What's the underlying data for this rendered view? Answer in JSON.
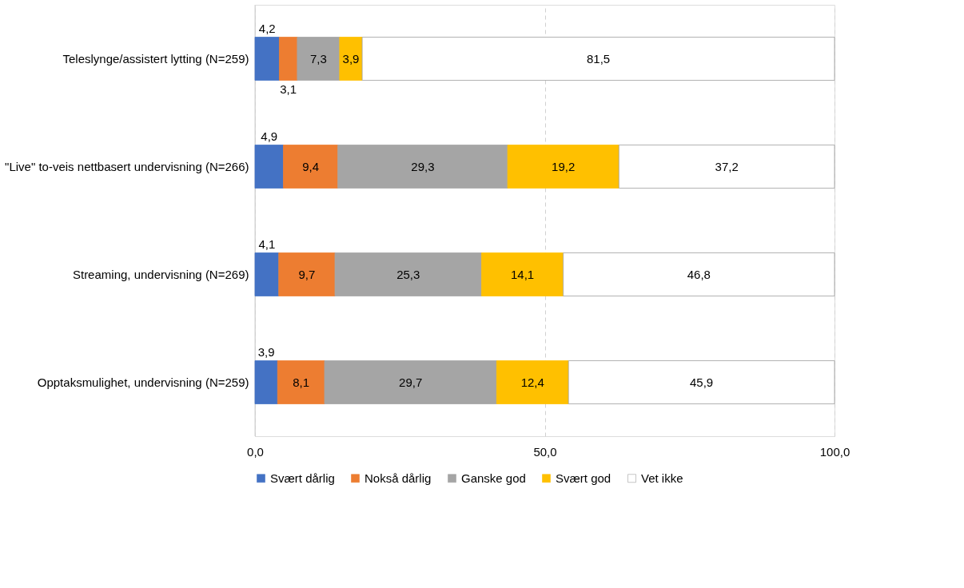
{
  "chart_data": {
    "type": "bar",
    "orientation": "horizontal",
    "stacked": true,
    "categories": [
      "Teleslynge/assistert lytting (N=259)",
      "\"Live\" to-veis nettbasert undervisning (N=266)",
      "Streaming, undervisning (N=269)",
      "Opptaksmulighet, undervisning (N=259)"
    ],
    "series": [
      {
        "name": "Svært dårlig",
        "color": "#4472c4",
        "values": [
          4.2,
          4.9,
          4.1,
          3.9
        ],
        "value_labels": [
          "4,2",
          "4,9",
          "4,1",
          "3,9"
        ]
      },
      {
        "name": "Nokså dårlig",
        "color": "#ed7d31",
        "values": [
          3.1,
          9.4,
          9.7,
          8.1
        ],
        "value_labels": [
          "3,1",
          "9,4",
          "9,7",
          "8,1"
        ]
      },
      {
        "name": "Ganske god",
        "color": "#a5a5a5",
        "values": [
          7.3,
          29.3,
          25.3,
          29.7
        ],
        "value_labels": [
          "7,3",
          "29,3",
          "25,3",
          "29,7"
        ]
      },
      {
        "name": "Svært god",
        "color": "#ffc000",
        "values": [
          3.9,
          19.2,
          14.1,
          12.4
        ],
        "value_labels": [
          "3,9",
          "19,2",
          "14,1",
          "12,4"
        ]
      },
      {
        "name": "Vet ikke",
        "color": "#ffffff",
        "values": [
          81.5,
          37.2,
          46.8,
          45.9
        ],
        "value_labels": [
          "81,5",
          "37,2",
          "46,8",
          "45,9"
        ]
      }
    ],
    "xlim": [
      0,
      100
    ],
    "xticks": [
      {
        "value": 0,
        "label": "0,0"
      },
      {
        "value": 50,
        "label": "50,0"
      },
      {
        "value": 100,
        "label": "100,0"
      }
    ],
    "grid": "x",
    "legend": "bottom"
  }
}
